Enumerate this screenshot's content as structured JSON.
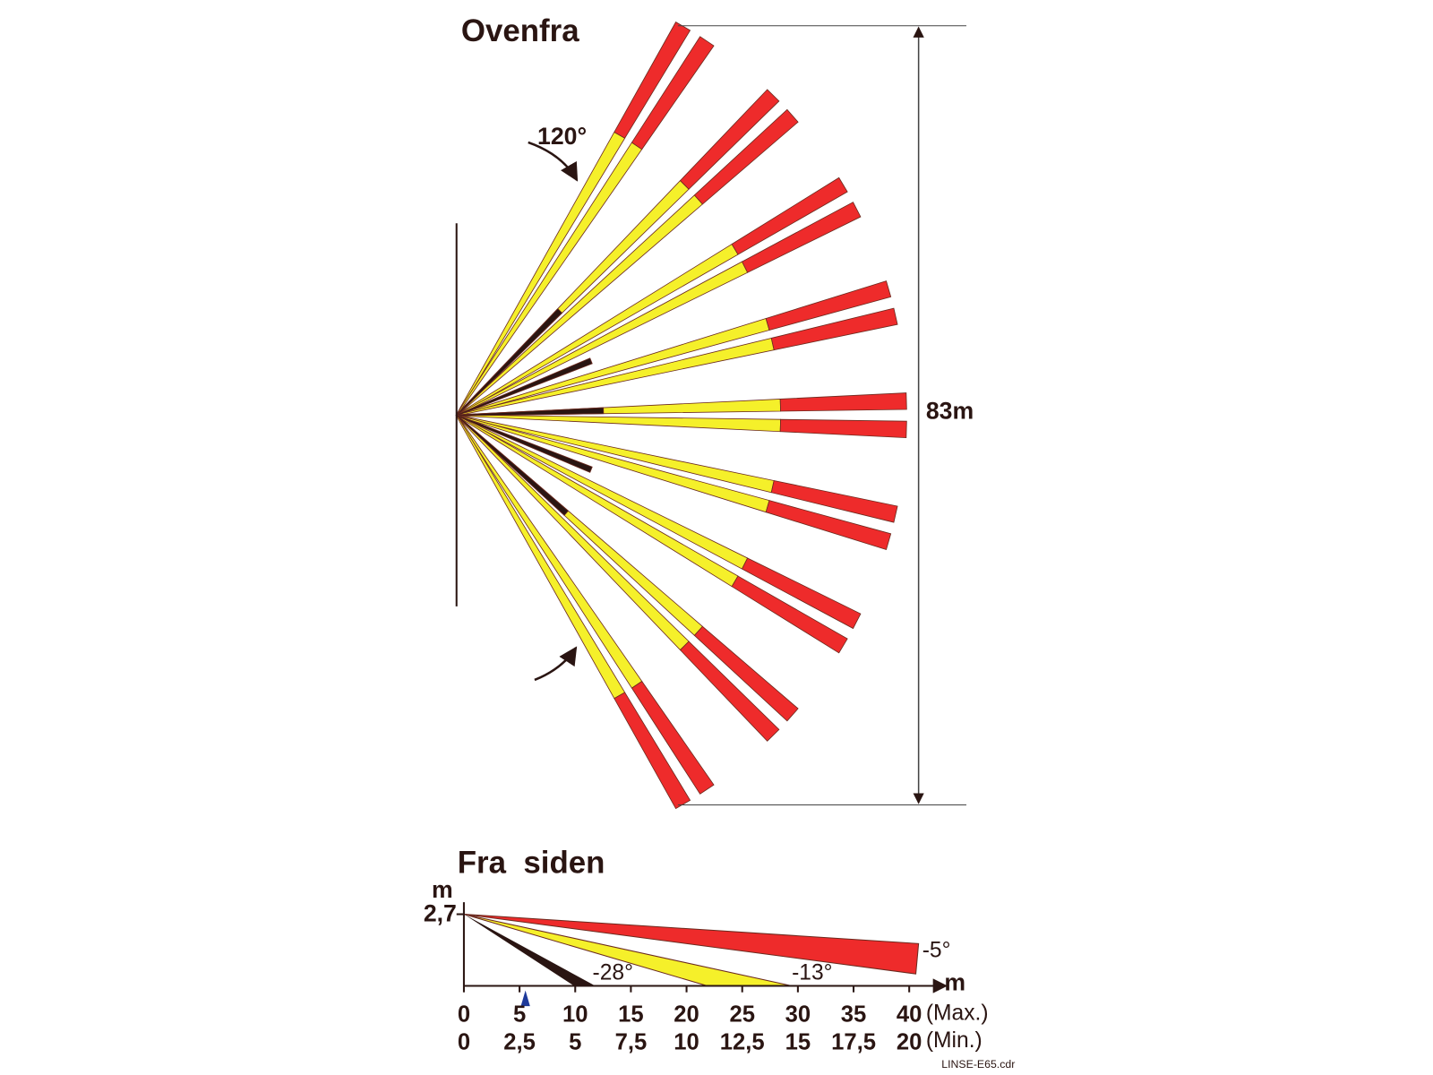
{
  "top_view": {
    "title": "Ovenfra",
    "angle_label": "120°",
    "width_label": "83m"
  },
  "side_view": {
    "title": "Fra  siden",
    "y_unit": "m",
    "height_label": "2,7",
    "x_unit": "m",
    "beam_labels": [
      "-5°",
      "-13°",
      "-28°"
    ],
    "max_ticks": [
      "0",
      "5",
      "10",
      "15",
      "20",
      "25",
      "30",
      "35",
      "40"
    ],
    "max_caption": "(Max.)",
    "min_ticks": [
      "0",
      "2,5",
      "5",
      "7,5",
      "10",
      "12,5",
      "15",
      "17,5",
      "20"
    ],
    "min_caption": "(Min.)"
  },
  "footer": "LINSE-E65.cdr"
}
